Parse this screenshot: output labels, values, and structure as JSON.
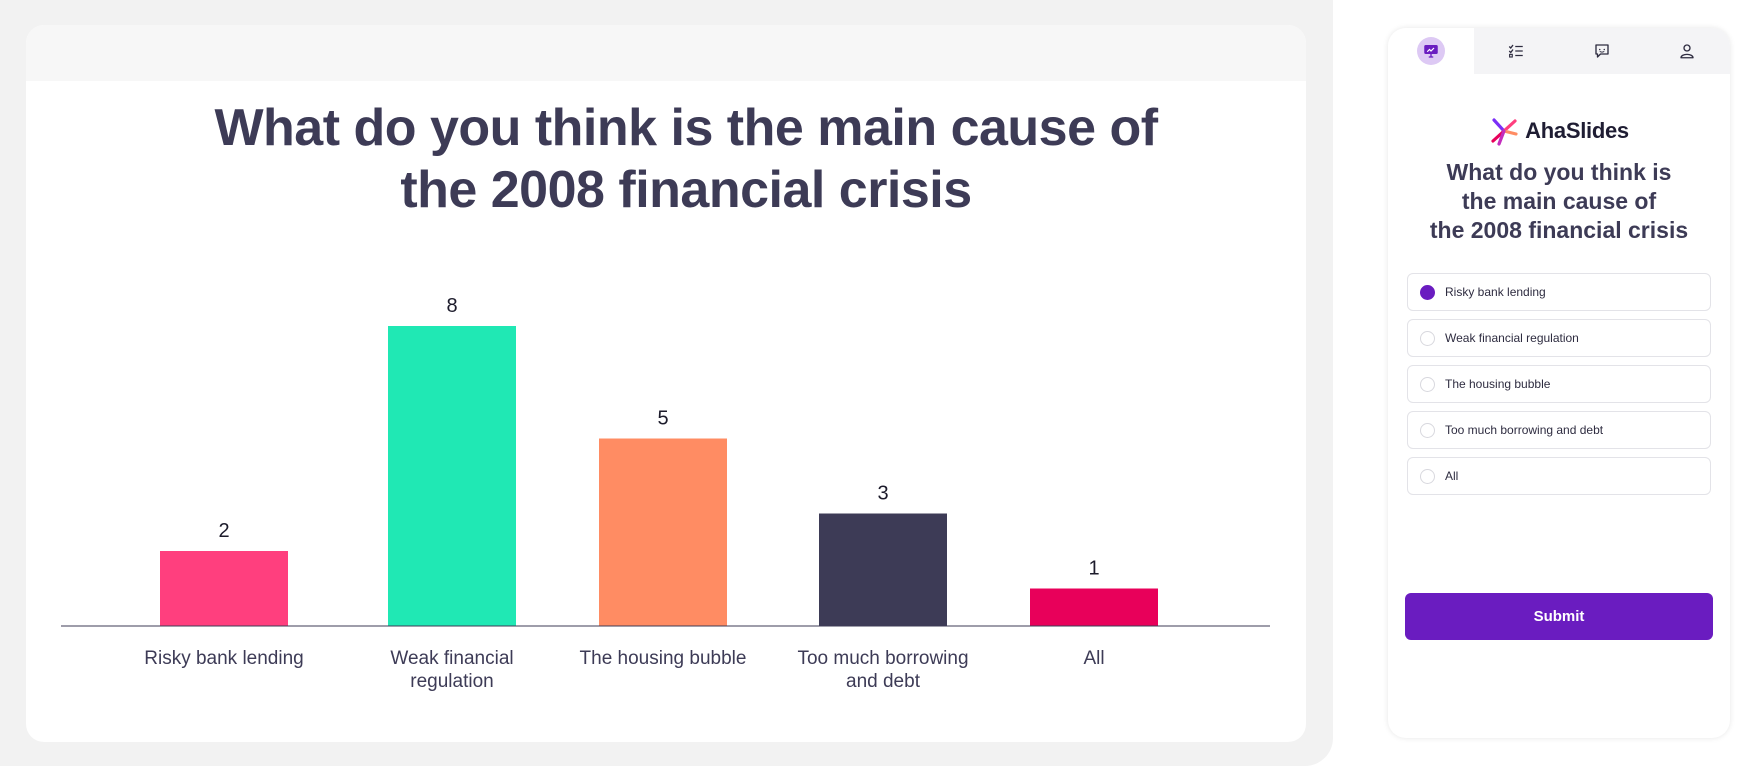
{
  "presentation": {
    "title_line1": "What do you think is the main cause of",
    "title_line2": "the 2008 financial crisis"
  },
  "chart_data": {
    "type": "bar",
    "categories": [
      [
        "Risky bank lending"
      ],
      [
        "Weak financial",
        "regulation"
      ],
      [
        "The housing bubble"
      ],
      [
        "Too much borrowing",
        "and debt"
      ],
      [
        "All"
      ]
    ],
    "values": [
      2,
      8,
      5,
      3,
      1
    ],
    "colors": [
      "#ff3f7e",
      "#20e8b4",
      "#ff8c63",
      "#3d3b56",
      "#e8005a"
    ],
    "ylim": [
      0,
      8
    ],
    "grid": false,
    "legend": "none"
  },
  "panel": {
    "tabs": [
      {
        "icon": "presentation-icon",
        "active": true
      },
      {
        "icon": "checklist-icon",
        "active": false
      },
      {
        "icon": "chat-icon",
        "active": false
      },
      {
        "icon": "user-icon",
        "active": false
      }
    ],
    "logo_text": "AhaSlides",
    "brand_color": "#6a1cc0",
    "question_line1": "What do you think is",
    "question_line2": "the main cause of",
    "question_line3": "the 2008 financial crisis",
    "options": [
      {
        "label": "Risky bank lending",
        "selected": true
      },
      {
        "label": "Weak financial regulation",
        "selected": false
      },
      {
        "label": "The housing bubble",
        "selected": false
      },
      {
        "label": "Too much borrowing and debt",
        "selected": false
      },
      {
        "label": "All",
        "selected": false
      }
    ],
    "submit_label": "Submit"
  }
}
